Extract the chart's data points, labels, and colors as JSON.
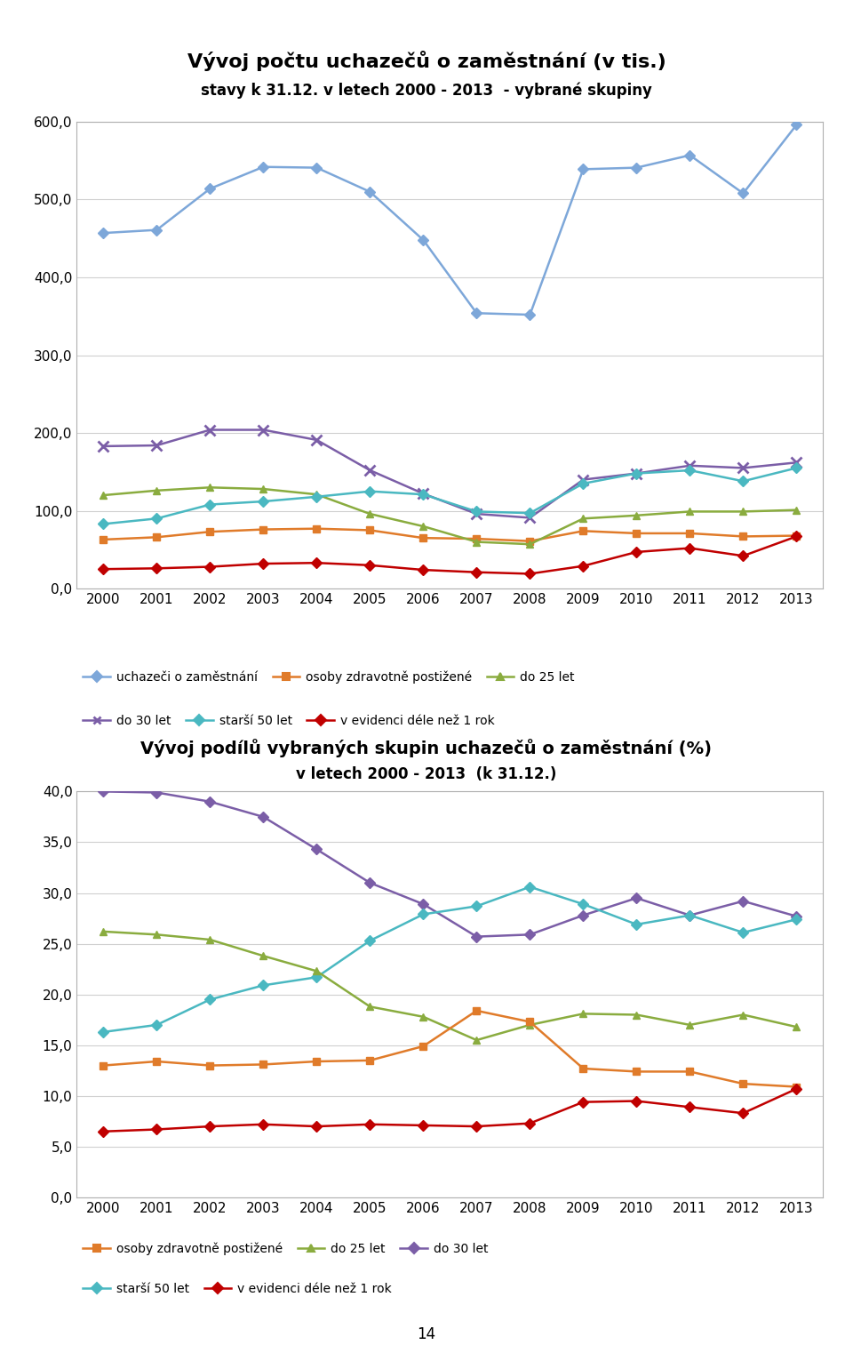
{
  "years": [
    2000,
    2001,
    2002,
    2003,
    2004,
    2005,
    2006,
    2007,
    2008,
    2009,
    2010,
    2011,
    2012,
    2013
  ],
  "chart1_title": "Vývoj počtu uchazečů o zaměstnání (v tis.)",
  "chart1_subtitle": "stavy k 31.12. v letech 2000 - 2013  - vybrané skupiny",
  "chart1_ylim": [
    0,
    600
  ],
  "chart1_yticks": [
    0,
    100,
    200,
    300,
    400,
    500,
    600
  ],
  "chart1_yticklabels": [
    "0,0",
    "100,0",
    "200,0",
    "300,0",
    "400,0",
    "500,0",
    "600,0"
  ],
  "uchazeci_vals": [
    457,
    461,
    514,
    542,
    541,
    510,
    448,
    354,
    352,
    539,
    541,
    557,
    508,
    596
  ],
  "osoby_vals": [
    63,
    66,
    73,
    76,
    77,
    75,
    65,
    64,
    61,
    74,
    71,
    71,
    67,
    68
  ],
  "do25_vals": [
    120,
    126,
    130,
    128,
    121,
    96,
    80,
    60,
    57,
    90,
    94,
    99,
    99,
    101
  ],
  "do30_vals": [
    183,
    184,
    204,
    204,
    191,
    152,
    122,
    96,
    91,
    140,
    148,
    158,
    155,
    162
  ],
  "star50_vals": [
    83,
    90,
    108,
    112,
    118,
    125,
    121,
    99,
    97,
    135,
    148,
    152,
    138,
    155
  ],
  "evid_vals": [
    25,
    26,
    28,
    32,
    33,
    30,
    24,
    21,
    19,
    29,
    47,
    52,
    42,
    67
  ],
  "chart2_title": "Vývoj podílů vybraných skupin uchazečů o zaměstnání (%)",
  "chart2_subtitle": "v letech 2000 - 2013  (k 31.12.)",
  "chart2_ylim": [
    0,
    40
  ],
  "chart2_yticks": [
    0,
    5,
    10,
    15,
    20,
    25,
    30,
    35,
    40
  ],
  "chart2_yticklabels": [
    "0,0",
    "5,0",
    "10,0",
    "15,0",
    "20,0",
    "25,0",
    "30,0",
    "35,0",
    "40,0"
  ],
  "p_osoby": [
    13.0,
    13.4,
    13.0,
    13.1,
    13.4,
    13.5,
    14.9,
    18.4,
    17.3,
    12.7,
    12.4,
    12.4,
    11.2,
    10.9
  ],
  "p_do25": [
    26.2,
    25.9,
    25.4,
    23.8,
    22.3,
    18.8,
    17.8,
    15.5,
    17.0,
    18.1,
    18.0,
    17.0,
    18.0,
    16.8
  ],
  "p_do30": [
    40.0,
    39.9,
    39.0,
    37.5,
    34.3,
    31.0,
    28.9,
    25.7,
    25.9,
    27.8,
    29.5,
    27.8,
    29.2,
    27.7
  ],
  "p_star50": [
    16.3,
    17.0,
    19.5,
    20.9,
    21.7,
    25.3,
    27.9,
    28.7,
    30.6,
    28.9,
    26.9,
    27.8,
    26.1,
    27.4
  ],
  "p_evid": [
    6.5,
    6.7,
    7.0,
    7.2,
    7.0,
    7.2,
    7.1,
    7.0,
    7.3,
    9.4,
    9.5,
    8.9,
    8.3,
    10.7
  ],
  "color_uchazeci": "#7da7d9",
  "color_osoby": "#e07b2a",
  "color_do25": "#8aac3f",
  "color_do30": "#7b5ea7",
  "color_star50": "#4ab8c1",
  "color_evid": "#c00000",
  "page_number": "14"
}
